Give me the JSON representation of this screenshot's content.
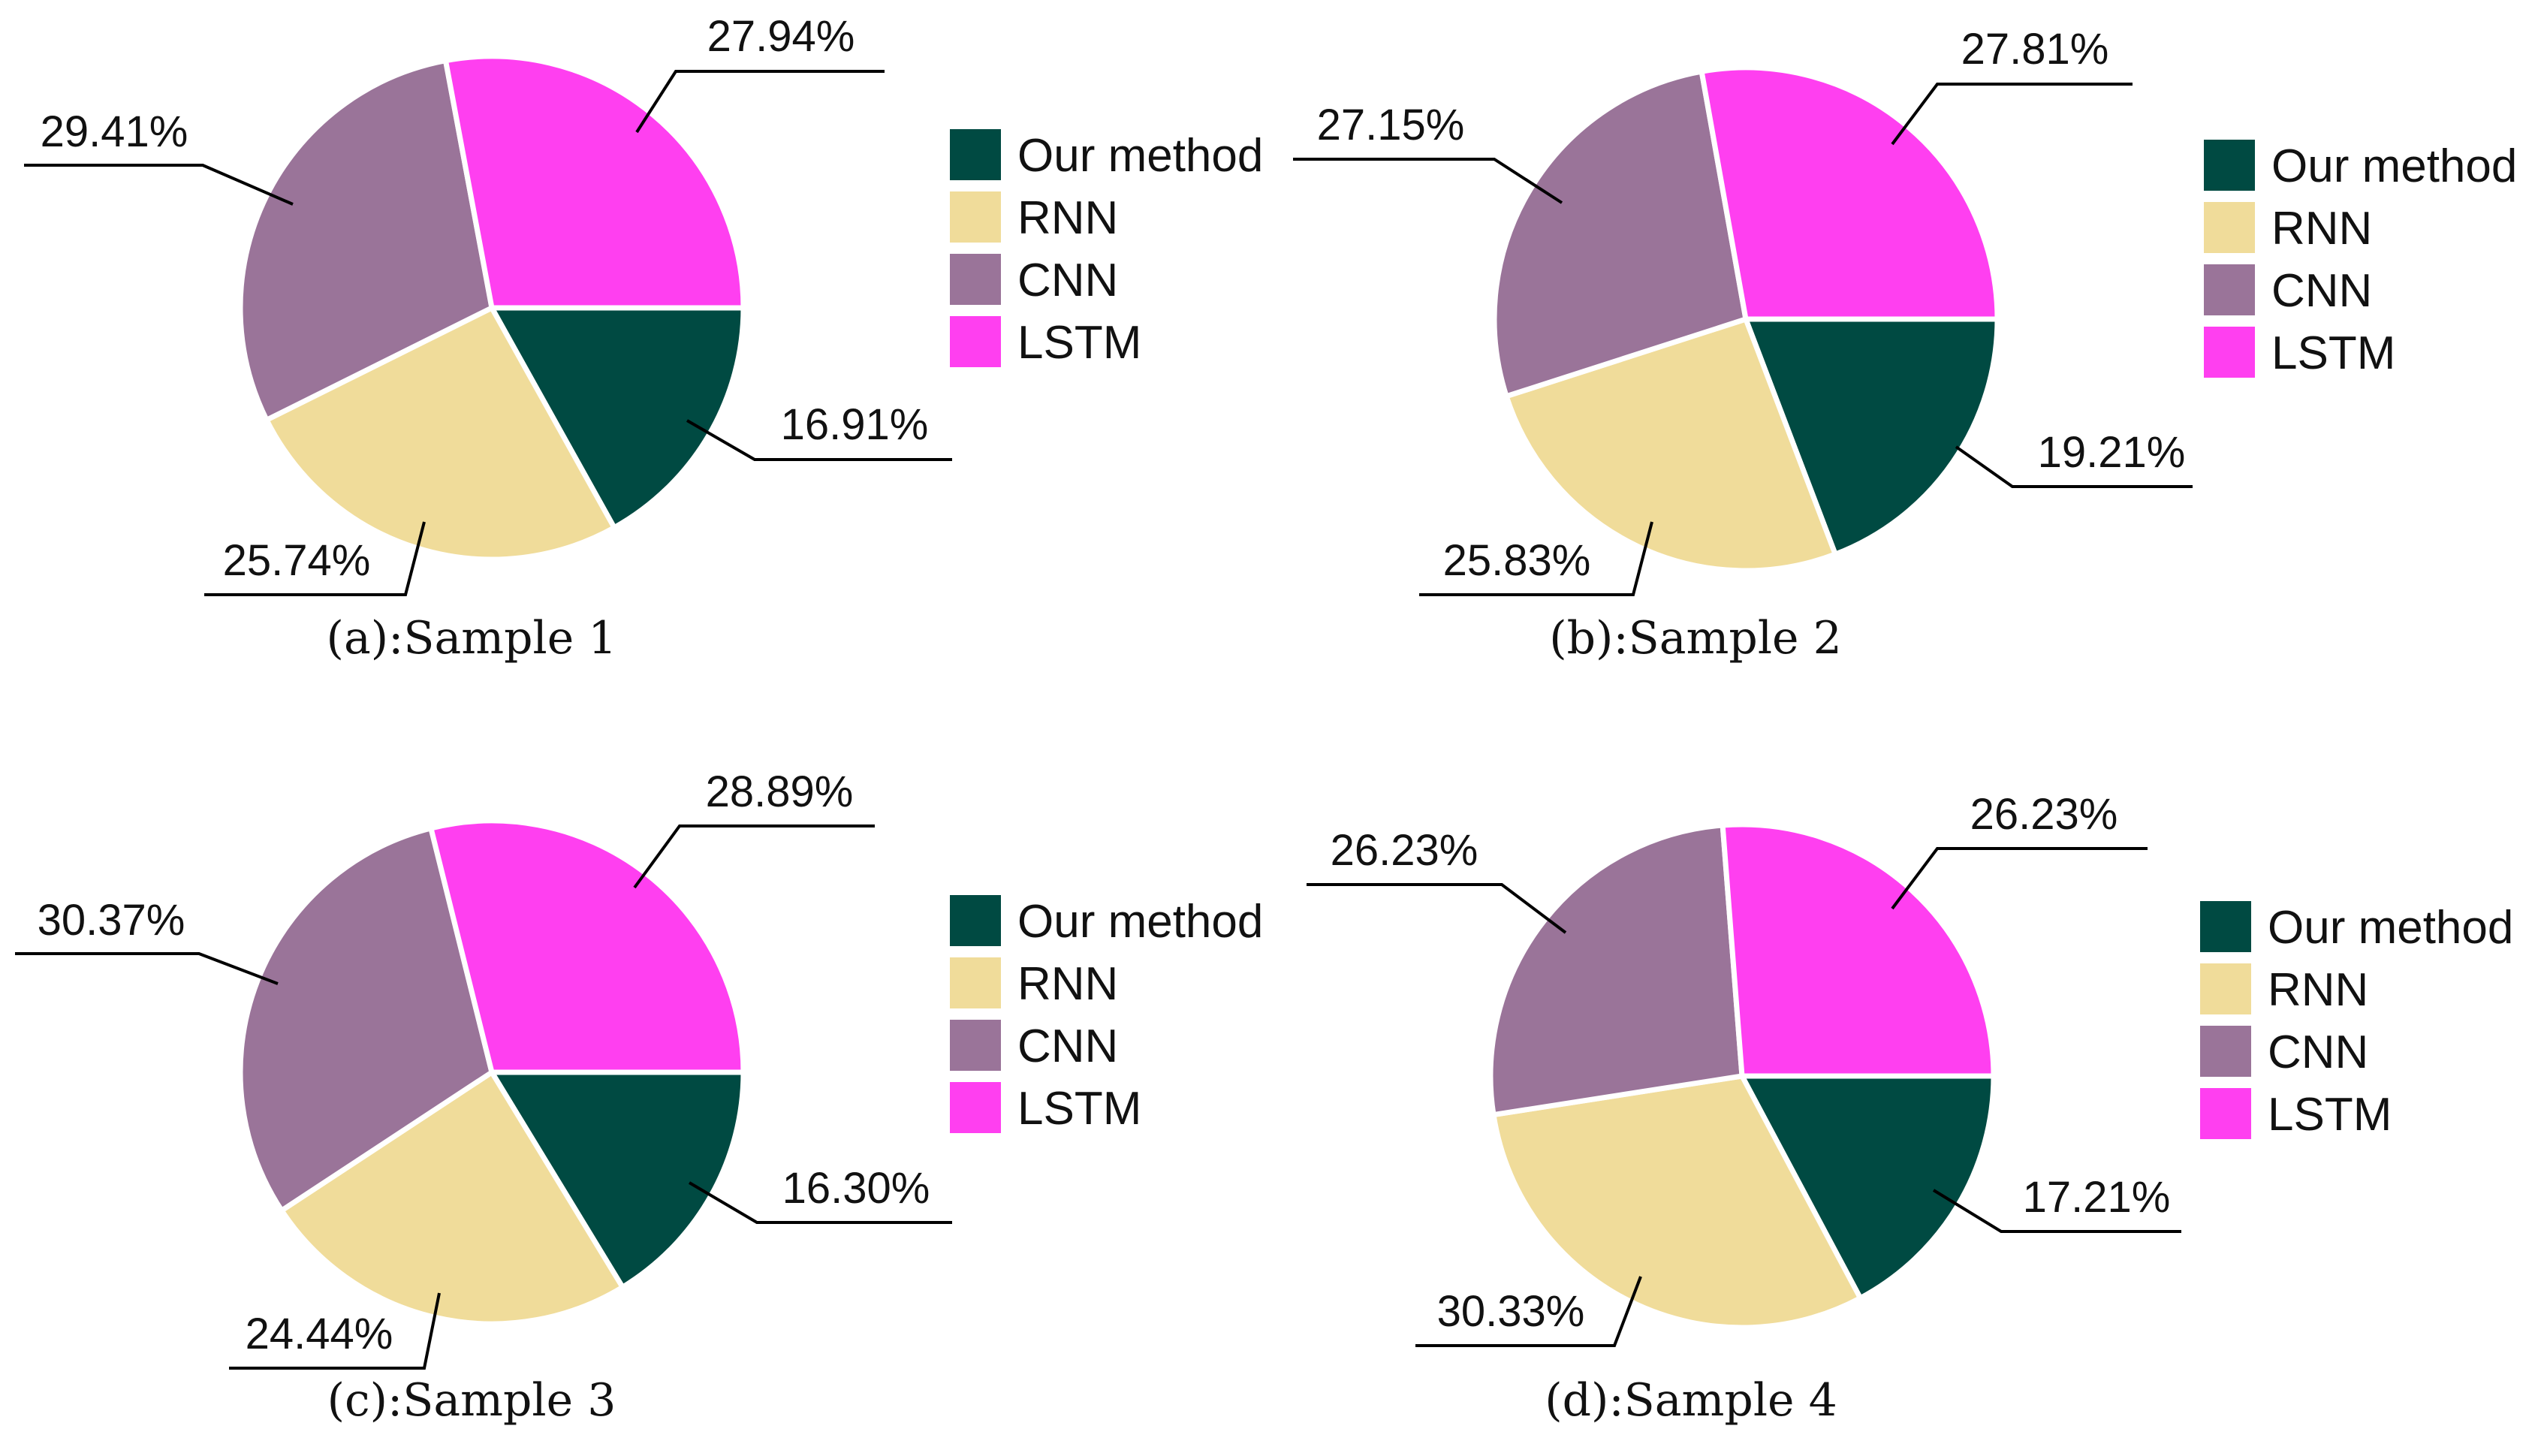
{
  "chart_data": [
    {
      "type": "pie",
      "caption": "(a):Sample 1",
      "categories": [
        "Our method",
        "RNN",
        "CNN",
        "LSTM"
      ],
      "values": [
        16.91,
        25.74,
        29.41,
        27.94
      ],
      "labels": [
        "16.91%",
        "25.74%",
        "29.41%",
        "27.94%"
      ],
      "legend": [
        "Our method",
        "RNN",
        "CNN",
        "LSTM"
      ]
    },
    {
      "type": "pie",
      "caption": "(b):Sample 2",
      "categories": [
        "Our method",
        "RNN",
        "CNN",
        "LSTM"
      ],
      "values": [
        19.21,
        25.83,
        27.15,
        27.81
      ],
      "labels": [
        "19.21%",
        "25.83%",
        "27.15%",
        "27.81%"
      ],
      "legend": [
        "Our method",
        "RNN",
        "CNN",
        "LSTM"
      ]
    },
    {
      "type": "pie",
      "caption": "(c):Sample 3",
      "categories": [
        "Our method",
        "RNN",
        "CNN",
        "LSTM"
      ],
      "values": [
        16.3,
        24.44,
        30.37,
        28.89
      ],
      "labels": [
        "16.30%",
        "24.44%",
        "30.37%",
        "28.89%"
      ],
      "legend": [
        "Our method",
        "RNN",
        "CNN",
        "LSTM"
      ]
    },
    {
      "type": "pie",
      "caption": "(d):Sample 4",
      "categories": [
        "Our method",
        "RNN",
        "CNN",
        "LSTM"
      ],
      "values": [
        17.21,
        30.33,
        26.23,
        26.23
      ],
      "labels": [
        "17.21%",
        "30.33%",
        "26.23%",
        "26.23%"
      ],
      "legend": [
        "Our method",
        "RNN",
        "CNN",
        "LSTM"
      ]
    }
  ],
  "colors": [
    "#004a42",
    "#f0dc9a",
    "#9a7499",
    "#ff3ff0"
  ]
}
